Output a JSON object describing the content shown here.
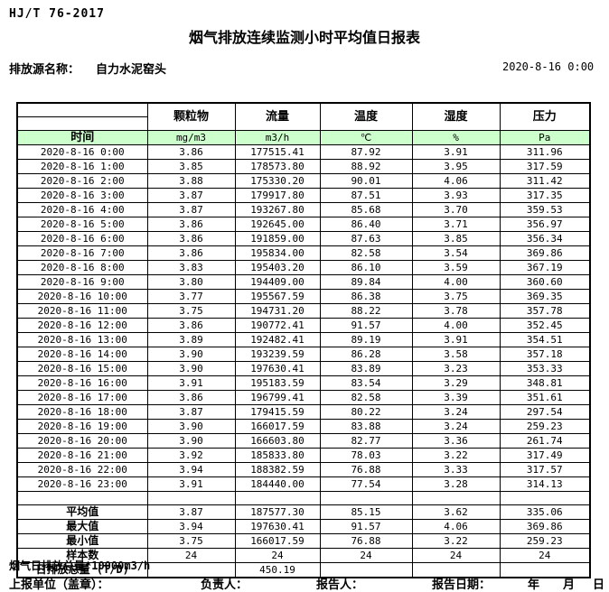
{
  "page": {
    "standard": "HJ/T  76-2017",
    "title": "烟气排放连续监测小时平均值日报表",
    "source_label": "排放源名称：",
    "source_name": "自力水泥窑头",
    "datetime": "2020-8-16 0:00"
  },
  "table": {
    "time_header": "时间",
    "header_bg": "#ccffcc",
    "columns": [
      {
        "name": "颗粒物",
        "unit": "mg/m3"
      },
      {
        "name": "流量",
        "unit": "m3/h"
      },
      {
        "name": "温度",
        "unit": "℃"
      },
      {
        "name": "湿度",
        "unit": "%"
      },
      {
        "name": "压力",
        "unit": "Pa"
      }
    ],
    "rows": [
      {
        "time": "2020-8-16 0:00",
        "values": [
          "3.86",
          "177515.41",
          "87.92",
          "3.91",
          "311.96"
        ]
      },
      {
        "time": "2020-8-16 1:00",
        "values": [
          "3.85",
          "178573.80",
          "88.92",
          "3.95",
          "317.59"
        ]
      },
      {
        "time": "2020-8-16 2:00",
        "values": [
          "3.88",
          "175330.20",
          "90.01",
          "4.06",
          "311.42"
        ]
      },
      {
        "time": "2020-8-16 3:00",
        "values": [
          "3.87",
          "179917.80",
          "87.51",
          "3.93",
          "317.35"
        ]
      },
      {
        "time": "2020-8-16 4:00",
        "values": [
          "3.87",
          "193267.80",
          "85.68",
          "3.70",
          "359.53"
        ]
      },
      {
        "time": "2020-8-16 5:00",
        "values": [
          "3.86",
          "192645.00",
          "86.40",
          "3.71",
          "356.97"
        ]
      },
      {
        "time": "2020-8-16 6:00",
        "values": [
          "3.86",
          "191859.00",
          "87.63",
          "3.85",
          "356.34"
        ]
      },
      {
        "time": "2020-8-16 7:00",
        "values": [
          "3.86",
          "195834.00",
          "82.58",
          "3.54",
          "369.86"
        ]
      },
      {
        "time": "2020-8-16 8:00",
        "values": [
          "3.83",
          "195403.20",
          "86.10",
          "3.59",
          "367.19"
        ]
      },
      {
        "time": "2020-8-16 9:00",
        "values": [
          "3.80",
          "194409.00",
          "89.84",
          "4.00",
          "360.60"
        ]
      },
      {
        "time": "2020-8-16 10:00",
        "values": [
          "3.77",
          "195567.59",
          "86.38",
          "3.75",
          "369.35"
        ]
      },
      {
        "time": "2020-8-16 11:00",
        "values": [
          "3.75",
          "194731.20",
          "88.22",
          "3.78",
          "357.78"
        ]
      },
      {
        "time": "2020-8-16 12:00",
        "values": [
          "3.86",
          "190772.41",
          "91.57",
          "4.00",
          "352.45"
        ]
      },
      {
        "time": "2020-8-16 13:00",
        "values": [
          "3.89",
          "192482.41",
          "89.19",
          "3.91",
          "354.51"
        ]
      },
      {
        "time": "2020-8-16 14:00",
        "values": [
          "3.90",
          "193239.59",
          "86.28",
          "3.58",
          "357.18"
        ]
      },
      {
        "time": "2020-8-16 15:00",
        "values": [
          "3.90",
          "197630.41",
          "83.89",
          "3.23",
          "353.33"
        ]
      },
      {
        "time": "2020-8-16 16:00",
        "values": [
          "3.91",
          "195183.59",
          "83.54",
          "3.29",
          "348.81"
        ]
      },
      {
        "time": "2020-8-16 17:00",
        "values": [
          "3.86",
          "196799.41",
          "82.58",
          "3.39",
          "351.61"
        ]
      },
      {
        "time": "2020-8-16 18:00",
        "values": [
          "3.87",
          "179415.59",
          "80.22",
          "3.24",
          "297.54"
        ]
      },
      {
        "time": "2020-8-16 19:00",
        "values": [
          "3.90",
          "166017.59",
          "83.88",
          "3.24",
          "259.23"
        ]
      },
      {
        "time": "2020-8-16 20:00",
        "values": [
          "3.90",
          "166603.80",
          "82.77",
          "3.36",
          "261.74"
        ]
      },
      {
        "time": "2020-8-16 21:00",
        "values": [
          "3.92",
          "185833.80",
          "78.03",
          "3.22",
          "317.49"
        ]
      },
      {
        "time": "2020-8-16 22:00",
        "values": [
          "3.94",
          "188382.59",
          "76.88",
          "3.33",
          "317.57"
        ]
      },
      {
        "time": "2020-8-16 23:00",
        "values": [
          "3.91",
          "184440.00",
          "77.54",
          "3.28",
          "314.13"
        ]
      }
    ],
    "summary": [
      {
        "label": "平均值",
        "values": [
          "3.87",
          "187577.30",
          "85.15",
          "3.62",
          "335.06"
        ]
      },
      {
        "label": "最大值",
        "values": [
          "3.94",
          "197630.41",
          "91.57",
          "4.06",
          "369.86"
        ]
      },
      {
        "label": "最小值",
        "values": [
          "3.75",
          "166017.59",
          "76.88",
          "3.22",
          "259.23"
        ]
      },
      {
        "label": "样本数",
        "values": [
          "24",
          "24",
          "24",
          "24",
          "24"
        ]
      },
      {
        "label": "日排放总量 (T/D)",
        "values": [
          "",
          "450.19",
          "",
          "",
          ""
        ]
      }
    ]
  },
  "footer": {
    "note": "烟气日排放总量*10000m3/h",
    "report_unit_label": "上报单位（盖章）：",
    "responsible_label": "负责人：",
    "reporter_label": "报告人：",
    "report_date_label": "报告日期：",
    "year": "年",
    "month": "月",
    "day": "日"
  }
}
